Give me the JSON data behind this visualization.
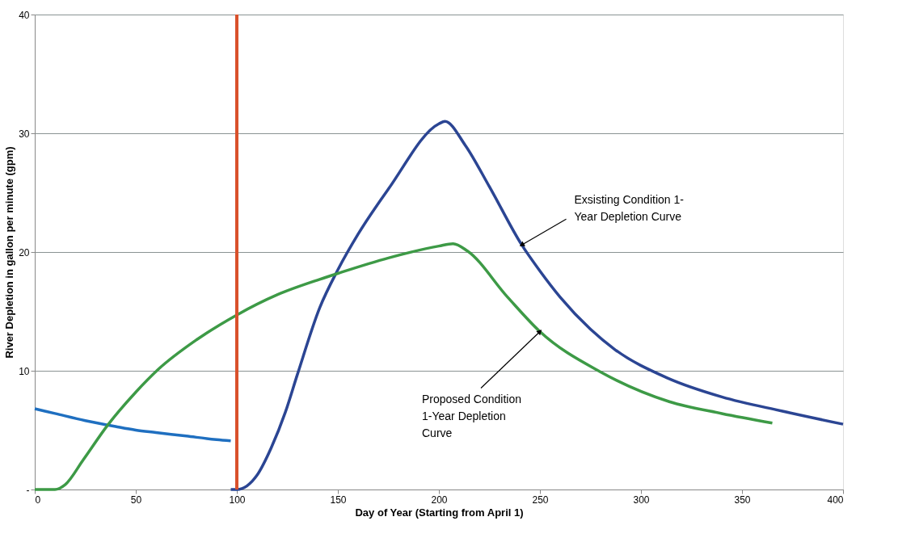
{
  "chart_data": {
    "type": "line",
    "xlabel": "Day of Year (Starting  from April 1)",
    "ylabel": "River Depletion in gallon per minute (gpm)",
    "xlim": [
      0,
      400
    ],
    "xticks": [
      0,
      50,
      100,
      150,
      200,
      250,
      300,
      350,
      400
    ],
    "ylim": [
      0,
      40
    ],
    "yticks": [
      {
        "value": 0,
        "label": "-"
      },
      10,
      20,
      30,
      40
    ],
    "grid": "y",
    "legend": false,
    "marker": "none",
    "line_style": "solid",
    "series": [
      {
        "color": "#1f6fc0",
        "x": [
          0,
          10,
          25,
          40,
          50,
          60,
          75,
          90,
          97
        ],
        "values": [
          6.8,
          6.4,
          5.8,
          5.3,
          5.0,
          4.8,
          4.5,
          4.2,
          4.1
        ]
      },
      {
        "color": "#2b4593",
        "x": [
          97,
          100,
          105,
          110,
          117,
          124,
          130,
          141,
          150,
          160,
          175,
          200,
          203,
          213,
          225,
          241,
          250,
          260,
          275,
          287,
          313,
          340,
          370,
          400
        ],
        "values": [
          0,
          0,
          0.3,
          1.2,
          3.5,
          6.5,
          9.7,
          15.3,
          18.5,
          21.5,
          25.3,
          30.8,
          31.0,
          29.0,
          25.5,
          20.6,
          18.4,
          16.2,
          13.5,
          11.8,
          9.4,
          7.8,
          6.6,
          5.5
        ]
      },
      {
        "color": "#3d9a46",
        "x": [
          0,
          10,
          15,
          24,
          36,
          50,
          61,
          80,
          100,
          120,
          141,
          150,
          175,
          200,
          207,
          214,
          234,
          250,
          280,
          314,
          340,
          365
        ],
        "values": [
          0,
          0,
          0.4,
          2.5,
          5.4,
          8.2,
          10.1,
          12.6,
          14.7,
          16.4,
          17.7,
          18.2,
          19.5,
          20.5,
          20.7,
          20.1,
          16.2,
          13.3,
          9.9,
          7.4,
          6.4,
          5.6
        ]
      }
    ],
    "ref_lines": [
      {
        "axis": "x",
        "value": 100,
        "color": "#d9512c"
      }
    ],
    "annotations": [
      {
        "text": "Exsisting Condition 1-\nYear Depletion Curve",
        "x": 241,
        "y": 20.6
      },
      {
        "text": "Proposed Condition\n1-Year Depletion\nCurve",
        "x": 250,
        "y": 13.3
      }
    ]
  }
}
